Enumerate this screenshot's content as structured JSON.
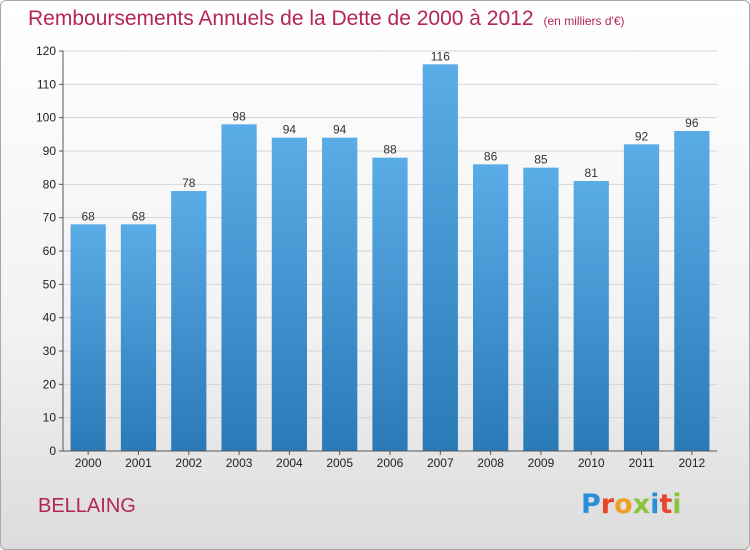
{
  "header": {
    "title": "Remboursements Annuels de la Dette de 2000 à 2012",
    "unit": "(en milliers d'€)"
  },
  "footer": {
    "commune": "BELLAING",
    "logo_letters": [
      "P",
      "r",
      "o",
      "x",
      "i",
      "t",
      "i"
    ],
    "logo_colors": [
      "#2a8fd6",
      "#e8452c",
      "#f0a020",
      "#8ac43f",
      "#2a8fd6",
      "#e8452c",
      "#8ac43f"
    ]
  },
  "chart_data": {
    "type": "bar",
    "categories": [
      "2000",
      "2001",
      "2002",
      "2003",
      "2004",
      "2005",
      "2006",
      "2007",
      "2008",
      "2009",
      "2010",
      "2011",
      "2012"
    ],
    "values": [
      68,
      68,
      78,
      98,
      94,
      94,
      88,
      116,
      86,
      85,
      81,
      92,
      96
    ],
    "ylim": [
      0,
      120
    ],
    "yticks": [
      0,
      10,
      20,
      30,
      40,
      50,
      60,
      70,
      80,
      90,
      100,
      110,
      120
    ],
    "grid": true,
    "bar_color_top": "#5aace6",
    "bar_color_bottom": "#2b7ab8"
  }
}
